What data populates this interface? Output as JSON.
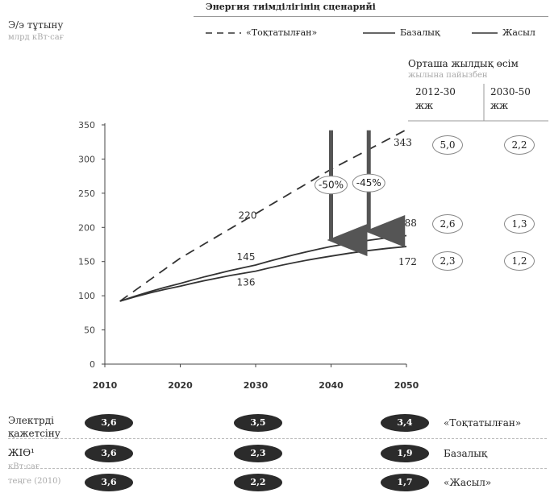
{
  "header": {
    "y_label": "Э/э тұтыну",
    "y_unit": "млрд кВт·сағ",
    "legend_title": "Энергия тиімділігінің сценарийі"
  },
  "legend": [
    {
      "name": "«Тоқтатылған»",
      "style": "dashed"
    },
    {
      "name": "Базалық",
      "style": "solid"
    },
    {
      "name": "Жасыл",
      "style": "solid"
    }
  ],
  "growth_panel": {
    "title": "Орташа жылдық өсім",
    "subtitle": "жылына пайызбен",
    "periods": [
      "2012-30 жж",
      "2030-50 жж"
    ],
    "rows": [
      {
        "end_value": "343",
        "values": [
          "5,0",
          "2,2"
        ]
      },
      {
        "end_value": "188",
        "values": [
          "2,6",
          "1,3"
        ]
      },
      {
        "end_value": "172",
        "values": [
          "2,3",
          "1,2"
        ]
      }
    ]
  },
  "chart_data": {
    "type": "line",
    "x": [
      2012,
      2020,
      2030,
      2040,
      2050
    ],
    "xlim": [
      2010,
      2050
    ],
    "ylim": [
      0,
      350
    ],
    "x_ticks": [
      "2010",
      "2020",
      "2030",
      "2040",
      "2050"
    ],
    "y_ticks": [
      "0",
      "50",
      "100",
      "150",
      "200",
      "250",
      "300",
      "350"
    ],
    "series": [
      {
        "name": "«Тоқтатылған»",
        "style": "dashed",
        "values": [
          92,
          155,
          220,
          285,
          343
        ]
      },
      {
        "name": "Базалық",
        "style": "solid",
        "values": [
          92,
          118,
          145,
          172,
          188
        ]
      },
      {
        "name": "Жасыл",
        "style": "solid",
        "values": [
          92,
          114,
          136,
          158,
          172
        ]
      }
    ],
    "point_labels": [
      {
        "x": 2030,
        "y": 220,
        "text": "220"
      },
      {
        "x": 2030,
        "y": 145,
        "text": "145"
      },
      {
        "x": 2030,
        "y": 136,
        "text": "136"
      }
    ],
    "arrows": [
      {
        "x": 2040,
        "y_from": 342,
        "y_to": 172,
        "label": "-50%",
        "label_y": 262
      },
      {
        "x": 2045,
        "y_from": 342,
        "y_to": 185,
        "label": "-45%",
        "label_y": 265
      }
    ],
    "grid": false
  },
  "bottom_rows": {
    "label_lines": [
      "Электрді",
      "қажетсіну",
      "ЖІӨ¹"
    ],
    "label_faded": [
      "кВт·сағ",
      "теңге (2010)"
    ],
    "rows": [
      {
        "scenario": "«Тоқтатылған»",
        "values": [
          "3,6",
          "3,5",
          "3,4"
        ]
      },
      {
        "scenario": "Базалық",
        "values": [
          "3,6",
          "2,3",
          "1,9"
        ]
      },
      {
        "scenario": "«Жасыл»",
        "values": [
          "3,6",
          "2,2",
          "1,7"
        ]
      }
    ]
  },
  "colors": {
    "line": "#333333",
    "pill": "#2b2b2b",
    "arrow": "#555555"
  }
}
